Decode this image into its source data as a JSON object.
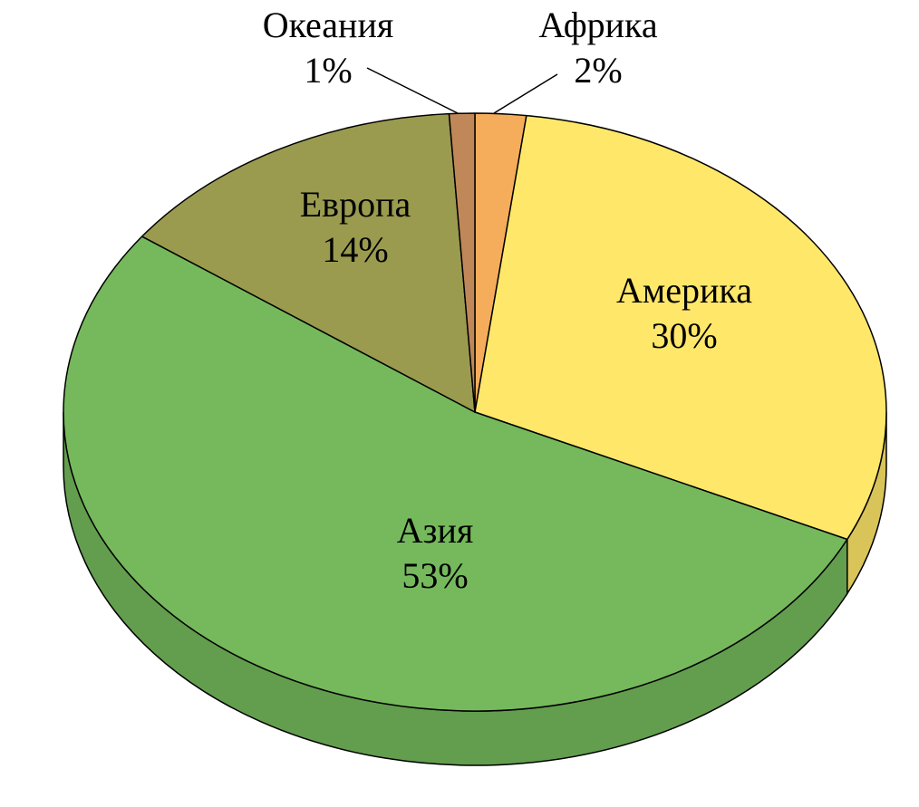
{
  "chart_data": {
    "type": "pie",
    "categories": [
      "Африка",
      "Америка",
      "Азия",
      "Европа",
      "Океания"
    ],
    "values": [
      2,
      30,
      53,
      14,
      1
    ],
    "value_labels": [
      "2%",
      "30%",
      "53%",
      "14%",
      "1%"
    ],
    "colors": [
      "#f5ad5b",
      "#ffe76a",
      "#75b95c",
      "#9a9b4f",
      "#c08858"
    ]
  }
}
